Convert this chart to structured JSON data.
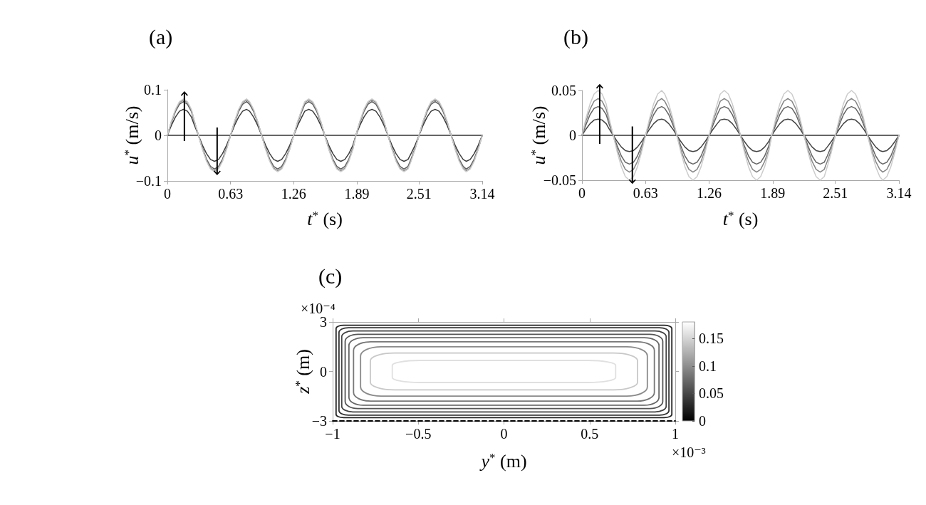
{
  "chart_data": [
    {
      "type": "line",
      "title": "(a)",
      "xlabel": "t$^{*}$ (s)",
      "ylabel": "u$^{*}$ (m/s)",
      "x": [
        0,
        0.04,
        0.08,
        0.12,
        0.16,
        0.2,
        0.24,
        0.27,
        0.31,
        0.35,
        0.39,
        0.43,
        0.47,
        0.51,
        0.55,
        0.59,
        0.63,
        0.67,
        0.71,
        0.75,
        0.79,
        0.82,
        0.86,
        0.9,
        0.94,
        0.98,
        1.02,
        1.06,
        1.1,
        1.14,
        1.18,
        1.22,
        1.26,
        1.3,
        1.34,
        1.37,
        1.41,
        1.45,
        1.49,
        1.53,
        1.57,
        1.61,
        1.65,
        1.69,
        1.73,
        1.77,
        1.81,
        1.85,
        1.88,
        1.92,
        1.96,
        2,
        2.04,
        2.08,
        2.12,
        2.16,
        2.2,
        2.24,
        2.28,
        2.32,
        2.36,
        2.4,
        2.43,
        2.47,
        2.51,
        2.55,
        2.59,
        2.63,
        2.67,
        2.71,
        2.75,
        2.79,
        2.83,
        2.87,
        2.91,
        2.95,
        2.98,
        3.02,
        3.06,
        3.1,
        3.14
      ],
      "series": [
        {
          "color": "#333333",
          "x": [
            0,
            3.14
          ],
          "values": [
            0,
            0
          ]
        },
        {
          "color": "#3c3c3c",
          "values": [
            0,
            0.022,
            0.04,
            0.053,
            0.057,
            0.053,
            0.04,
            0.022,
            0,
            -0.022,
            -0.04,
            -0.053,
            -0.057,
            -0.053,
            -0.04,
            -0.022,
            0,
            0.022,
            0.04,
            0.053,
            0.057,
            0.053,
            0.04,
            0.022,
            0,
            -0.022,
            -0.04,
            -0.053,
            -0.057,
            -0.053,
            -0.04,
            -0.022,
            0,
            0.022,
            0.04,
            0.053,
            0.057,
            0.053,
            0.04,
            0.022,
            0,
            -0.022,
            -0.04,
            -0.053,
            -0.057,
            -0.053,
            -0.04,
            -0.022,
            0,
            0.022,
            0.04,
            0.053,
            0.057,
            0.053,
            0.04,
            0.022,
            0,
            -0.022,
            -0.04,
            -0.053,
            -0.057,
            -0.053,
            -0.04,
            -0.022,
            0,
            0.022,
            0.04,
            0.053,
            0.057,
            0.053,
            0.04,
            0.022,
            0,
            -0.022,
            -0.04,
            -0.053,
            -0.057,
            -0.053,
            -0.04,
            -0.022,
            0
          ]
        },
        {
          "color": "#5e5e5e",
          "values": [
            0,
            0.028,
            0.052,
            0.068,
            0.074,
            0.068,
            0.052,
            0.028,
            0,
            -0.028,
            -0.052,
            -0.068,
            -0.074,
            -0.068,
            -0.052,
            -0.028,
            0,
            0.028,
            0.052,
            0.068,
            0.074,
            0.068,
            0.052,
            0.028,
            0,
            -0.028,
            -0.052,
            -0.068,
            -0.074,
            -0.068,
            -0.052,
            -0.028,
            0,
            0.028,
            0.052,
            0.068,
            0.074,
            0.068,
            0.052,
            0.028,
            0,
            -0.028,
            -0.052,
            -0.068,
            -0.074,
            -0.068,
            -0.052,
            -0.028,
            0,
            0.028,
            0.052,
            0.068,
            0.074,
            0.068,
            0.052,
            0.028,
            0,
            -0.028,
            -0.052,
            -0.068,
            -0.074,
            -0.068,
            -0.052,
            -0.028,
            0,
            0.028,
            0.052,
            0.068,
            0.074,
            0.068,
            0.052,
            0.028,
            0,
            -0.028,
            -0.052,
            -0.068,
            -0.074,
            -0.068,
            -0.052,
            -0.028,
            0
          ]
        },
        {
          "color": "#888888",
          "values": [
            0,
            0.03,
            0.055,
            0.072,
            0.078,
            0.072,
            0.055,
            0.03,
            0,
            -0.03,
            -0.055,
            -0.072,
            -0.078,
            -0.072,
            -0.055,
            -0.03,
            0,
            0.03,
            0.055,
            0.072,
            0.078,
            0.072,
            0.055,
            0.03,
            0,
            -0.03,
            -0.055,
            -0.072,
            -0.078,
            -0.072,
            -0.055,
            -0.03,
            0,
            0.03,
            0.055,
            0.072,
            0.078,
            0.072,
            0.055,
            0.03,
            0,
            -0.03,
            -0.055,
            -0.072,
            -0.078,
            -0.072,
            -0.055,
            -0.03,
            0,
            0.03,
            0.055,
            0.072,
            0.078,
            0.072,
            0.055,
            0.03,
            0,
            -0.03,
            -0.055,
            -0.072,
            -0.078,
            -0.072,
            -0.055,
            -0.03,
            0,
            0.03,
            0.055,
            0.072,
            0.078,
            0.072,
            0.055,
            0.03,
            0,
            -0.03,
            -0.055,
            -0.072,
            -0.078,
            -0.072,
            -0.055,
            -0.03,
            0
          ]
        },
        {
          "color": "#cccccc",
          "values": [
            0,
            0.031,
            0.057,
            0.074,
            0.08,
            0.074,
            0.057,
            0.031,
            0,
            -0.031,
            -0.057,
            -0.074,
            -0.08,
            -0.074,
            -0.057,
            -0.031,
            0,
            0.031,
            0.057,
            0.074,
            0.08,
            0.074,
            0.057,
            0.031,
            0,
            -0.031,
            -0.057,
            -0.074,
            -0.08,
            -0.074,
            -0.057,
            -0.031,
            0,
            0.031,
            0.057,
            0.074,
            0.08,
            0.074,
            0.057,
            0.031,
            0,
            -0.031,
            -0.057,
            -0.074,
            -0.08,
            -0.074,
            -0.057,
            -0.031,
            0,
            0.031,
            0.057,
            0.074,
            0.08,
            0.074,
            0.057,
            0.031,
            0,
            -0.031,
            -0.057,
            -0.074,
            -0.08,
            -0.074,
            -0.057,
            -0.031,
            0,
            0.031,
            0.057,
            0.074,
            0.08,
            0.074,
            0.057,
            0.031,
            0,
            -0.031,
            -0.057,
            -0.074,
            -0.08,
            -0.074,
            -0.057,
            -0.031,
            0
          ]
        }
      ],
      "xlim": [
        0,
        3.14
      ],
      "xticks": [
        0,
        0.63,
        1.26,
        1.89,
        2.51,
        3.14
      ],
      "ylim": [
        -0.1,
        0.1
      ],
      "yticks": [
        -0.1,
        0,
        0.1
      ],
      "grid": false,
      "marker": "none",
      "line_style": "solid"
    },
    {
      "type": "line",
      "title": "(b)",
      "xlabel": "t$^{*}$ (s)",
      "ylabel": "u$^{*}$ (m/s)",
      "x": [
        0,
        0.04,
        0.08,
        0.12,
        0.16,
        0.2,
        0.24,
        0.27,
        0.31,
        0.35,
        0.39,
        0.43,
        0.47,
        0.51,
        0.55,
        0.59,
        0.63,
        0.67,
        0.71,
        0.75,
        0.79,
        0.82,
        0.86,
        0.9,
        0.94,
        0.98,
        1.02,
        1.06,
        1.1,
        1.14,
        1.18,
        1.22,
        1.26,
        1.3,
        1.34,
        1.37,
        1.41,
        1.45,
        1.49,
        1.53,
        1.57,
        1.61,
        1.65,
        1.69,
        1.73,
        1.77,
        1.81,
        1.85,
        1.88,
        1.92,
        1.96,
        2,
        2.04,
        2.08,
        2.12,
        2.16,
        2.2,
        2.24,
        2.28,
        2.32,
        2.36,
        2.4,
        2.43,
        2.47,
        2.51,
        2.55,
        2.59,
        2.63,
        2.67,
        2.71,
        2.75,
        2.79,
        2.83,
        2.87,
        2.91,
        2.95,
        2.98,
        3.02,
        3.06,
        3.1,
        3.14
      ],
      "series": [
        {
          "color": "#333333",
          "x": [
            0,
            3.14
          ],
          "values": [
            0,
            0
          ]
        },
        {
          "color": "#444444",
          "values": [
            0,
            0.007,
            0.013,
            0.017,
            0.018,
            0.017,
            0.013,
            0.007,
            0,
            -0.007,
            -0.013,
            -0.017,
            -0.018,
            -0.017,
            -0.013,
            -0.007,
            0,
            0.007,
            0.013,
            0.017,
            0.018,
            0.017,
            0.013,
            0.007,
            0,
            -0.007,
            -0.013,
            -0.017,
            -0.018,
            -0.017,
            -0.013,
            -0.007,
            0,
            0.007,
            0.013,
            0.017,
            0.018,
            0.017,
            0.013,
            0.007,
            0,
            -0.007,
            -0.013,
            -0.017,
            -0.018,
            -0.017,
            -0.013,
            -0.007,
            0,
            0.007,
            0.013,
            0.017,
            0.018,
            0.017,
            0.013,
            0.007,
            0,
            -0.007,
            -0.013,
            -0.017,
            -0.018,
            -0.017,
            -0.013,
            -0.007,
            0,
            0.007,
            0.013,
            0.017,
            0.018,
            0.017,
            0.013,
            0.007,
            0,
            -0.007,
            -0.013,
            -0.017,
            -0.018,
            -0.017,
            -0.013,
            -0.007,
            0
          ]
        },
        {
          "color": "#666666",
          "values": [
            0,
            0.012,
            0.023,
            0.03,
            0.032,
            0.03,
            0.023,
            0.012,
            0,
            -0.012,
            -0.023,
            -0.03,
            -0.032,
            -0.03,
            -0.023,
            -0.012,
            0,
            0.012,
            0.023,
            0.03,
            0.032,
            0.03,
            0.023,
            0.012,
            0,
            -0.012,
            -0.023,
            -0.03,
            -0.032,
            -0.03,
            -0.023,
            -0.012,
            0,
            0.012,
            0.023,
            0.03,
            0.032,
            0.03,
            0.023,
            0.012,
            0,
            -0.012,
            -0.023,
            -0.03,
            -0.032,
            -0.03,
            -0.023,
            -0.012,
            0,
            0.012,
            0.023,
            0.03,
            0.032,
            0.03,
            0.023,
            0.012,
            0,
            -0.012,
            -0.023,
            -0.03,
            -0.032,
            -0.03,
            -0.023,
            -0.012,
            0,
            0.012,
            0.023,
            0.03,
            0.032,
            0.03,
            0.023,
            0.012,
            0,
            -0.012,
            -0.023,
            -0.03,
            -0.032,
            -0.03,
            -0.023,
            -0.012,
            0
          ]
        },
        {
          "color": "#868686",
          "values": [
            0,
            0.016,
            0.029,
            0.038,
            0.041,
            0.038,
            0.029,
            0.016,
            0,
            -0.016,
            -0.029,
            -0.038,
            -0.041,
            -0.038,
            -0.029,
            -0.016,
            0,
            0.016,
            0.029,
            0.038,
            0.041,
            0.038,
            0.029,
            0.016,
            0,
            -0.016,
            -0.029,
            -0.038,
            -0.041,
            -0.038,
            -0.029,
            -0.016,
            0,
            0.016,
            0.029,
            0.038,
            0.041,
            0.038,
            0.029,
            0.016,
            0,
            -0.016,
            -0.029,
            -0.038,
            -0.041,
            -0.038,
            -0.029,
            -0.016,
            0,
            0.016,
            0.029,
            0.038,
            0.041,
            0.038,
            0.029,
            0.016,
            0,
            -0.016,
            -0.029,
            -0.038,
            -0.041,
            -0.038,
            -0.029,
            -0.016,
            0,
            0.016,
            0.029,
            0.038,
            0.041,
            0.038,
            0.029,
            0.016,
            0,
            -0.016,
            -0.029,
            -0.038,
            -0.041,
            -0.038,
            -0.029,
            -0.016,
            0
          ]
        },
        {
          "color": "#cccccc",
          "values": [
            0,
            0.019,
            0.035,
            0.046,
            0.05,
            0.046,
            0.035,
            0.019,
            0,
            -0.019,
            -0.035,
            -0.046,
            -0.05,
            -0.046,
            -0.035,
            -0.019,
            0,
            0.019,
            0.035,
            0.046,
            0.05,
            0.046,
            0.035,
            0.019,
            0,
            -0.019,
            -0.035,
            -0.046,
            -0.05,
            -0.046,
            -0.035,
            -0.019,
            0,
            0.019,
            0.035,
            0.046,
            0.05,
            0.046,
            0.035,
            0.019,
            0,
            -0.019,
            -0.035,
            -0.046,
            -0.05,
            -0.046,
            -0.035,
            -0.019,
            0,
            0.019,
            0.035,
            0.046,
            0.05,
            0.046,
            0.035,
            0.019,
            0,
            -0.019,
            -0.035,
            -0.046,
            -0.05,
            -0.046,
            -0.035,
            -0.019,
            0,
            0.019,
            0.035,
            0.046,
            0.05,
            0.046,
            0.035,
            0.019,
            0,
            -0.019,
            -0.035,
            -0.046,
            -0.05,
            -0.046,
            -0.035,
            -0.019,
            0
          ]
        }
      ],
      "xlim": [
        0,
        3.14
      ],
      "xticks": [
        0,
        0.63,
        1.26,
        1.89,
        2.51,
        3.14
      ],
      "ylim": [
        -0.05,
        0.05
      ],
      "yticks": [
        -0.05,
        0,
        0.05
      ],
      "grid": false,
      "marker": "none",
      "line_style": "solid"
    },
    {
      "type": "line",
      "title": "(c)",
      "xlabel": "y$^{*}$ (m)",
      "ylabel": "z$^{*}$ (m)",
      "annotations": [
        "×10⁻⁴",
        "×10⁻³"
      ],
      "series": [
        {
          "color": "#000000",
          "x": [
            -1,
            1
          ],
          "values": [
            -3,
            -3
          ]
        }
      ],
      "xlim": [
        -1,
        1
      ],
      "xticks": [
        -1,
        -0.5,
        0,
        0.5,
        1
      ],
      "ylim": [
        -3,
        3
      ],
      "yticks": [
        -3,
        0,
        3
      ],
      "clim": [
        0,
        0.18
      ],
      "cticks": [
        0,
        0.05,
        0.1,
        0.15
      ],
      "grid": false,
      "marker": "none",
      "line_style": "dashed"
    }
  ]
}
